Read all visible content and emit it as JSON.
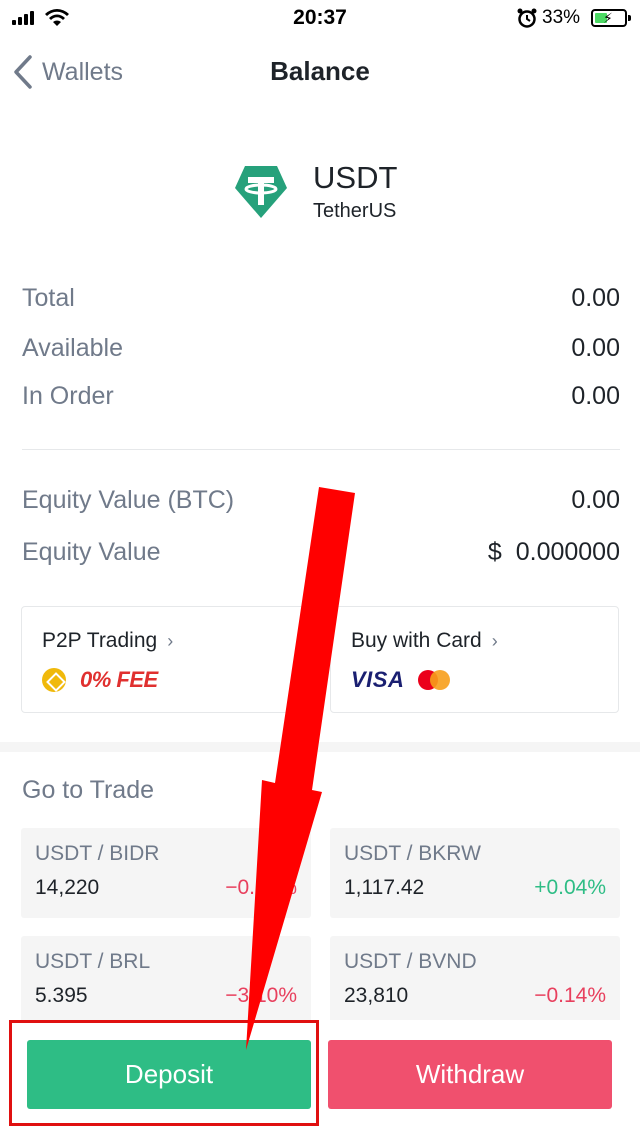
{
  "status_bar": {
    "time": "20:37",
    "battery_percent": "33%"
  },
  "nav": {
    "back_label": "Wallets",
    "title": "Balance"
  },
  "coin": {
    "symbol": "USDT",
    "name": "TetherUS",
    "logo_letter": "T",
    "color": "#26a17b"
  },
  "balances": [
    {
      "label": "Total",
      "value": "0.00"
    },
    {
      "label": "Available",
      "value": "0.00"
    },
    {
      "label": "In Order",
      "value": "0.00"
    }
  ],
  "equity": [
    {
      "label": "Equity Value (BTC)",
      "value": "0.00"
    },
    {
      "label": "Equity Value",
      "value": "$  0.000000"
    }
  ],
  "promos": {
    "p2p": {
      "title": "P2P Trading",
      "badge": "0% FEE"
    },
    "card": {
      "title": "Buy with Card",
      "brand": "VISA"
    }
  },
  "trade": {
    "title": "Go to Trade",
    "pairs": [
      {
        "name": "USDT / BIDR",
        "price": "14,220",
        "change": "−0.91%",
        "direction": "down"
      },
      {
        "name": "USDT / BKRW",
        "price": "1,117.42",
        "change": "+0.04%",
        "direction": "up"
      },
      {
        "name": "USDT / BRL",
        "price": "5.395",
        "change": "−3.10%",
        "direction": "down"
      },
      {
        "name": "USDT / BVND",
        "price": "23,810",
        "change": "−0.14%",
        "direction": "down"
      }
    ]
  },
  "actions": {
    "deposit_label": "Deposit",
    "withdraw_label": "Withdraw"
  },
  "colors": {
    "green": "#2ebd85",
    "red": "#f0506e",
    "annotation_red": "#ff0000"
  }
}
